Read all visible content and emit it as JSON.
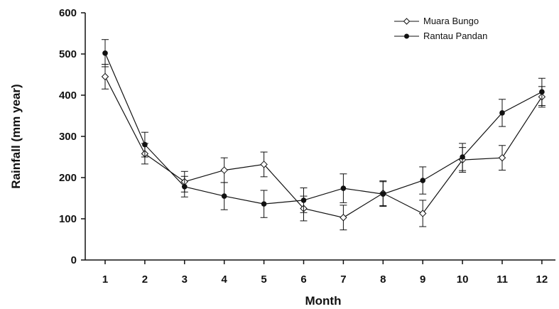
{
  "chart_data": {
    "type": "line",
    "title": "",
    "xlabel": "Month",
    "ylabel": "Rainfall (mm year)",
    "x": [
      1,
      2,
      3,
      4,
      5,
      6,
      7,
      8,
      9,
      10,
      11,
      12
    ],
    "x_ticks": [
      "1",
      "2",
      "3",
      "4",
      "5",
      "6",
      "7",
      "8",
      "9",
      "10",
      "11",
      "12"
    ],
    "y_ticks": [
      "0",
      "100",
      "200",
      "300",
      "400",
      "500",
      "600"
    ],
    "ylim": [
      0,
      600
    ],
    "grid": false,
    "legend_position": "top-right",
    "series": [
      {
        "name": "Muara Bungo",
        "marker": "open-diamond",
        "values": [
          445,
          258,
          190,
          218,
          232,
          125,
          103,
          162,
          113,
          243,
          248,
          396
        ],
        "error": [
          30,
          25,
          25,
          30,
          30,
          30,
          30,
          30,
          32,
          30,
          30,
          25
        ]
      },
      {
        "name": "Rantau Pandan",
        "marker": "filled-circle",
        "values": [
          502,
          280,
          178,
          155,
          136,
          145,
          174,
          160,
          193,
          250,
          357,
          408
        ],
        "error": [
          33,
          30,
          25,
          33,
          33,
          30,
          35,
          30,
          33,
          33,
          33,
          33
        ]
      }
    ]
  }
}
